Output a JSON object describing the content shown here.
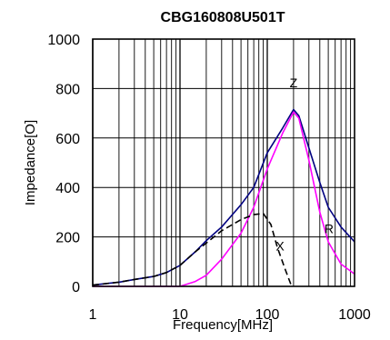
{
  "chart_data": {
    "type": "line",
    "title": "CBG160808U501T",
    "xlabel": "Frequency[MHz]",
    "ylabel": "Impedance[O]",
    "xscale": "log",
    "xlim": [
      1,
      1000
    ],
    "ylim": [
      0,
      1000
    ],
    "grid": true,
    "x_ticks": [
      1,
      10,
      100,
      1000
    ],
    "x_tick_labels": [
      "1",
      "10",
      "100",
      "1000"
    ],
    "y_ticks": [
      0,
      200,
      400,
      600,
      800,
      1000
    ],
    "y_tick_labels": [
      "0",
      "200",
      "400",
      "600",
      "800",
      "1000"
    ],
    "series": [
      {
        "name": "Z",
        "color": "#000080",
        "dash": "solid",
        "x": [
          1,
          2,
          3,
          5,
          7,
          10,
          15,
          20,
          30,
          50,
          70,
          100,
          150,
          200,
          230,
          300,
          400,
          500,
          700,
          1000
        ],
        "y": [
          5,
          17,
          28,
          40,
          56,
          85,
          140,
          185,
          240,
          330,
          400,
          540,
          640,
          715,
          690,
          560,
          420,
          320,
          240,
          180
        ]
      },
      {
        "name": "R",
        "color": "#ff00ff",
        "dash": "solid",
        "x": [
          1,
          5,
          10,
          15,
          20,
          30,
          50,
          70,
          100,
          150,
          200,
          230,
          300,
          400,
          500,
          700,
          1000
        ],
        "y": [
          0,
          0,
          0,
          20,
          45,
          110,
          215,
          320,
          475,
          620,
          705,
          680,
          510,
          300,
          180,
          90,
          50
        ]
      },
      {
        "name": "X",
        "color": "#000000",
        "dash": "dashed",
        "x": [
          1,
          2,
          3,
          5,
          7,
          10,
          15,
          20,
          30,
          50,
          70,
          90,
          110,
          130,
          160,
          190
        ],
        "y": [
          5,
          17,
          28,
          40,
          56,
          85,
          140,
          175,
          225,
          270,
          290,
          295,
          250,
          160,
          70,
          0
        ]
      }
    ],
    "annotations": [
      {
        "text": "Z",
        "x": 200,
        "y": 805
      },
      {
        "text": "R",
        "x": 510,
        "y": 215
      },
      {
        "text": "X",
        "x": 140,
        "y": 145
      }
    ]
  }
}
